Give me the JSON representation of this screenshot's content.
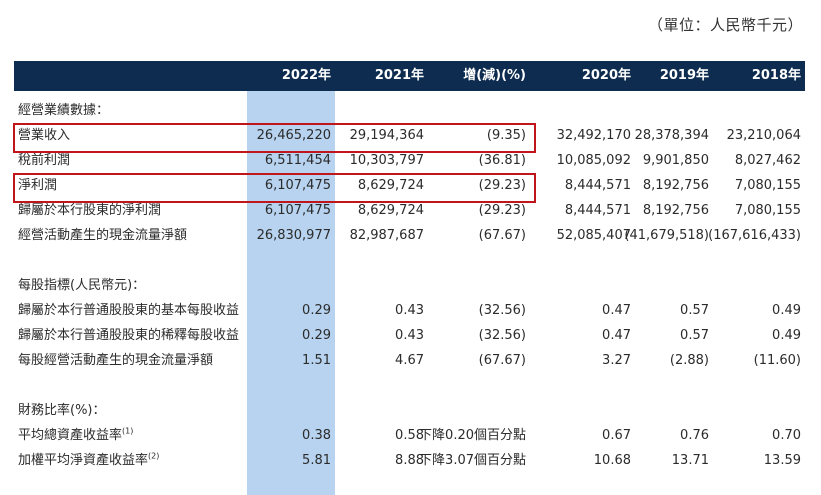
{
  "unit_label": "（單位：人民幣千元）",
  "columns": [
    "2022年",
    "2021年",
    "增(減)(%)",
    "2020年",
    "2019年",
    "2018年"
  ],
  "sections": {
    "operating": {
      "title": "經營業績數據：",
      "rows": [
        {
          "label": "營業收入",
          "values": [
            "26,465,220",
            "29,194,364",
            "(9.35)",
            "32,492,170",
            "28,378,394",
            "23,210,064"
          ]
        },
        {
          "label": "稅前利潤",
          "values": [
            "6,511,454",
            "10,303,797",
            "(36.81)",
            "10,085,092",
            "9,901,850",
            "8,027,462"
          ]
        },
        {
          "label": "淨利潤",
          "values": [
            "6,107,475",
            "8,629,724",
            "(29.23)",
            "8,444,571",
            "8,192,756",
            "7,080,155"
          ]
        },
        {
          "label": "歸屬於本行股東的淨利潤",
          "values": [
            "6,107,475",
            "8,629,724",
            "(29.23)",
            "8,444,571",
            "8,192,756",
            "7,080,155"
          ]
        },
        {
          "label": "經營活動產生的現金流量淨額",
          "values": [
            "26,830,977",
            "82,987,687",
            "(67.67)",
            "52,085,407",
            "(41,679,518)",
            "(167,616,433)"
          ]
        }
      ]
    },
    "per_share": {
      "title": "每股指標(人民幣元)：",
      "rows": [
        {
          "label": "歸屬於本行普通股股東的基本每股收益",
          "values": [
            "0.29",
            "0.43",
            "(32.56)",
            "0.47",
            "0.57",
            "0.49"
          ]
        },
        {
          "label": "歸屬於本行普通股股東的稀釋每股收益",
          "values": [
            "0.29",
            "0.43",
            "(32.56)",
            "0.47",
            "0.57",
            "0.49"
          ]
        },
        {
          "label": "每股經營活動產生的現金流量淨額",
          "values": [
            "1.51",
            "4.67",
            "(67.67)",
            "3.27",
            "(2.88)",
            "(11.60)"
          ]
        }
      ]
    },
    "ratios": {
      "title": "財務比率(%)：",
      "rows": [
        {
          "label": "平均總資產收益率",
          "note": "(1)",
          "values": [
            "0.38",
            "0.58",
            "下降0.20個百分點",
            "0.67",
            "0.76",
            "0.70"
          ]
        },
        {
          "label": "加權平均淨資產收益率",
          "note": "(2)",
          "values": [
            "5.81",
            "8.88",
            "下降3.07個百分點",
            "10.68",
            "13.71",
            "13.59"
          ]
        }
      ]
    }
  },
  "highlight_color": "#b7d3ef",
  "header_color": "#0d2c4f",
  "box_color": "#c0161b"
}
